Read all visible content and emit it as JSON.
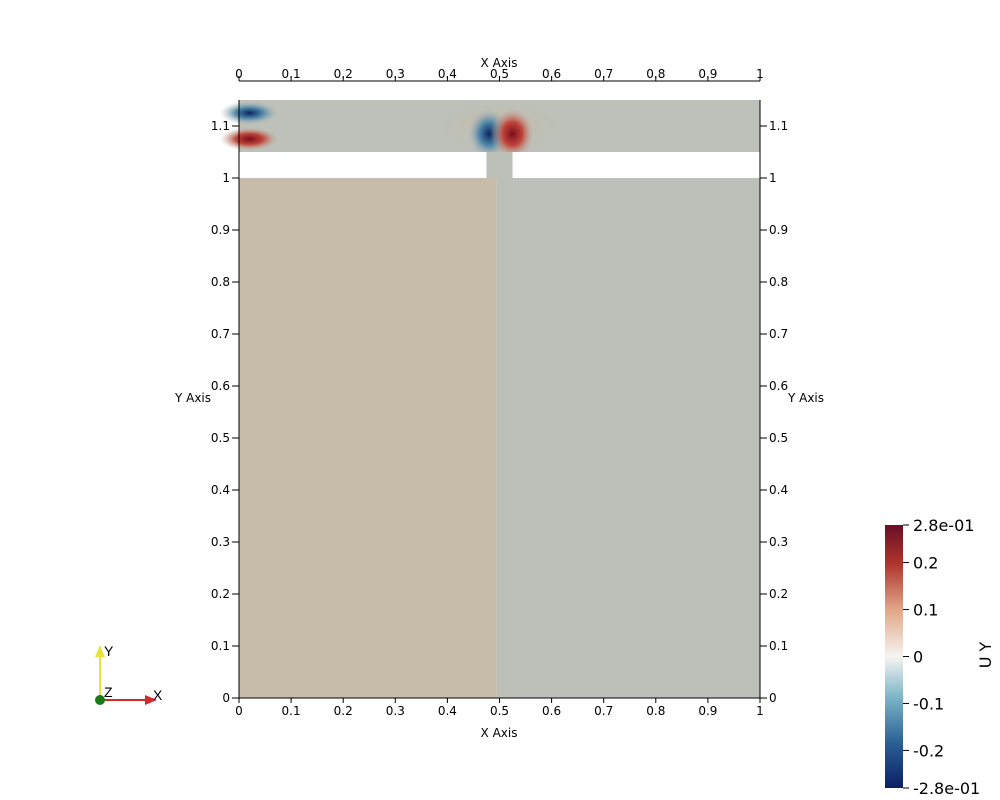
{
  "plot": {
    "x_axis_title": "X Axis",
    "y_axis_title": "Y Axis",
    "x_ticks": [
      "0",
      "0.1",
      "0.2",
      "0.3",
      "0.4",
      "0.5",
      "0.6",
      "0.7",
      "0.8",
      "0.9",
      "1"
    ],
    "x_tick_values": [
      0,
      0.1,
      0.2,
      0.3,
      0.4,
      0.5,
      0.6,
      0.7,
      0.8,
      0.9,
      1.0
    ],
    "y_ticks": [
      "0",
      "0.1",
      "0.2",
      "0.3",
      "0.4",
      "0.5",
      "0.6",
      "0.7",
      "0.8",
      "0.9",
      "1",
      "1.1"
    ],
    "y_tick_values": [
      0,
      0.1,
      0.2,
      0.3,
      0.4,
      0.5,
      0.6,
      0.7,
      0.8,
      0.9,
      1.0,
      1.1
    ],
    "x_range": [
      0,
      1
    ],
    "y_range": [
      0,
      1.15
    ],
    "gap_y_range": [
      1.0,
      1.05
    ],
    "slot_x_range": [
      0.475,
      0.525
    ],
    "colors": {
      "left_region": "#c6bca9",
      "right_region": "#bcc0b9",
      "top_band": "#bdc1b9"
    }
  },
  "colorbar": {
    "title": "U Y",
    "labels": [
      "2.8e-01",
      "0.2",
      "0.1",
      "0",
      "-0.1",
      "-0.2",
      "-2.8e-01"
    ],
    "label_values": [
      0.28,
      0.2,
      0.1,
      0,
      -0.1,
      -0.2,
      -0.28
    ],
    "range": [
      -0.28,
      0.28
    ],
    "stops": [
      "#0a1f66",
      "#2a5f94",
      "#7eb8c9",
      "#f6f4f1",
      "#e0a586",
      "#b0362e",
      "#6a0d25"
    ]
  },
  "orientation_axes": {
    "x_label": "X",
    "y_label": "Y",
    "z_label": "Z",
    "x_color": "#d22b2b",
    "y_color": "#e8e23b",
    "z_color": "#1a7a1a"
  }
}
